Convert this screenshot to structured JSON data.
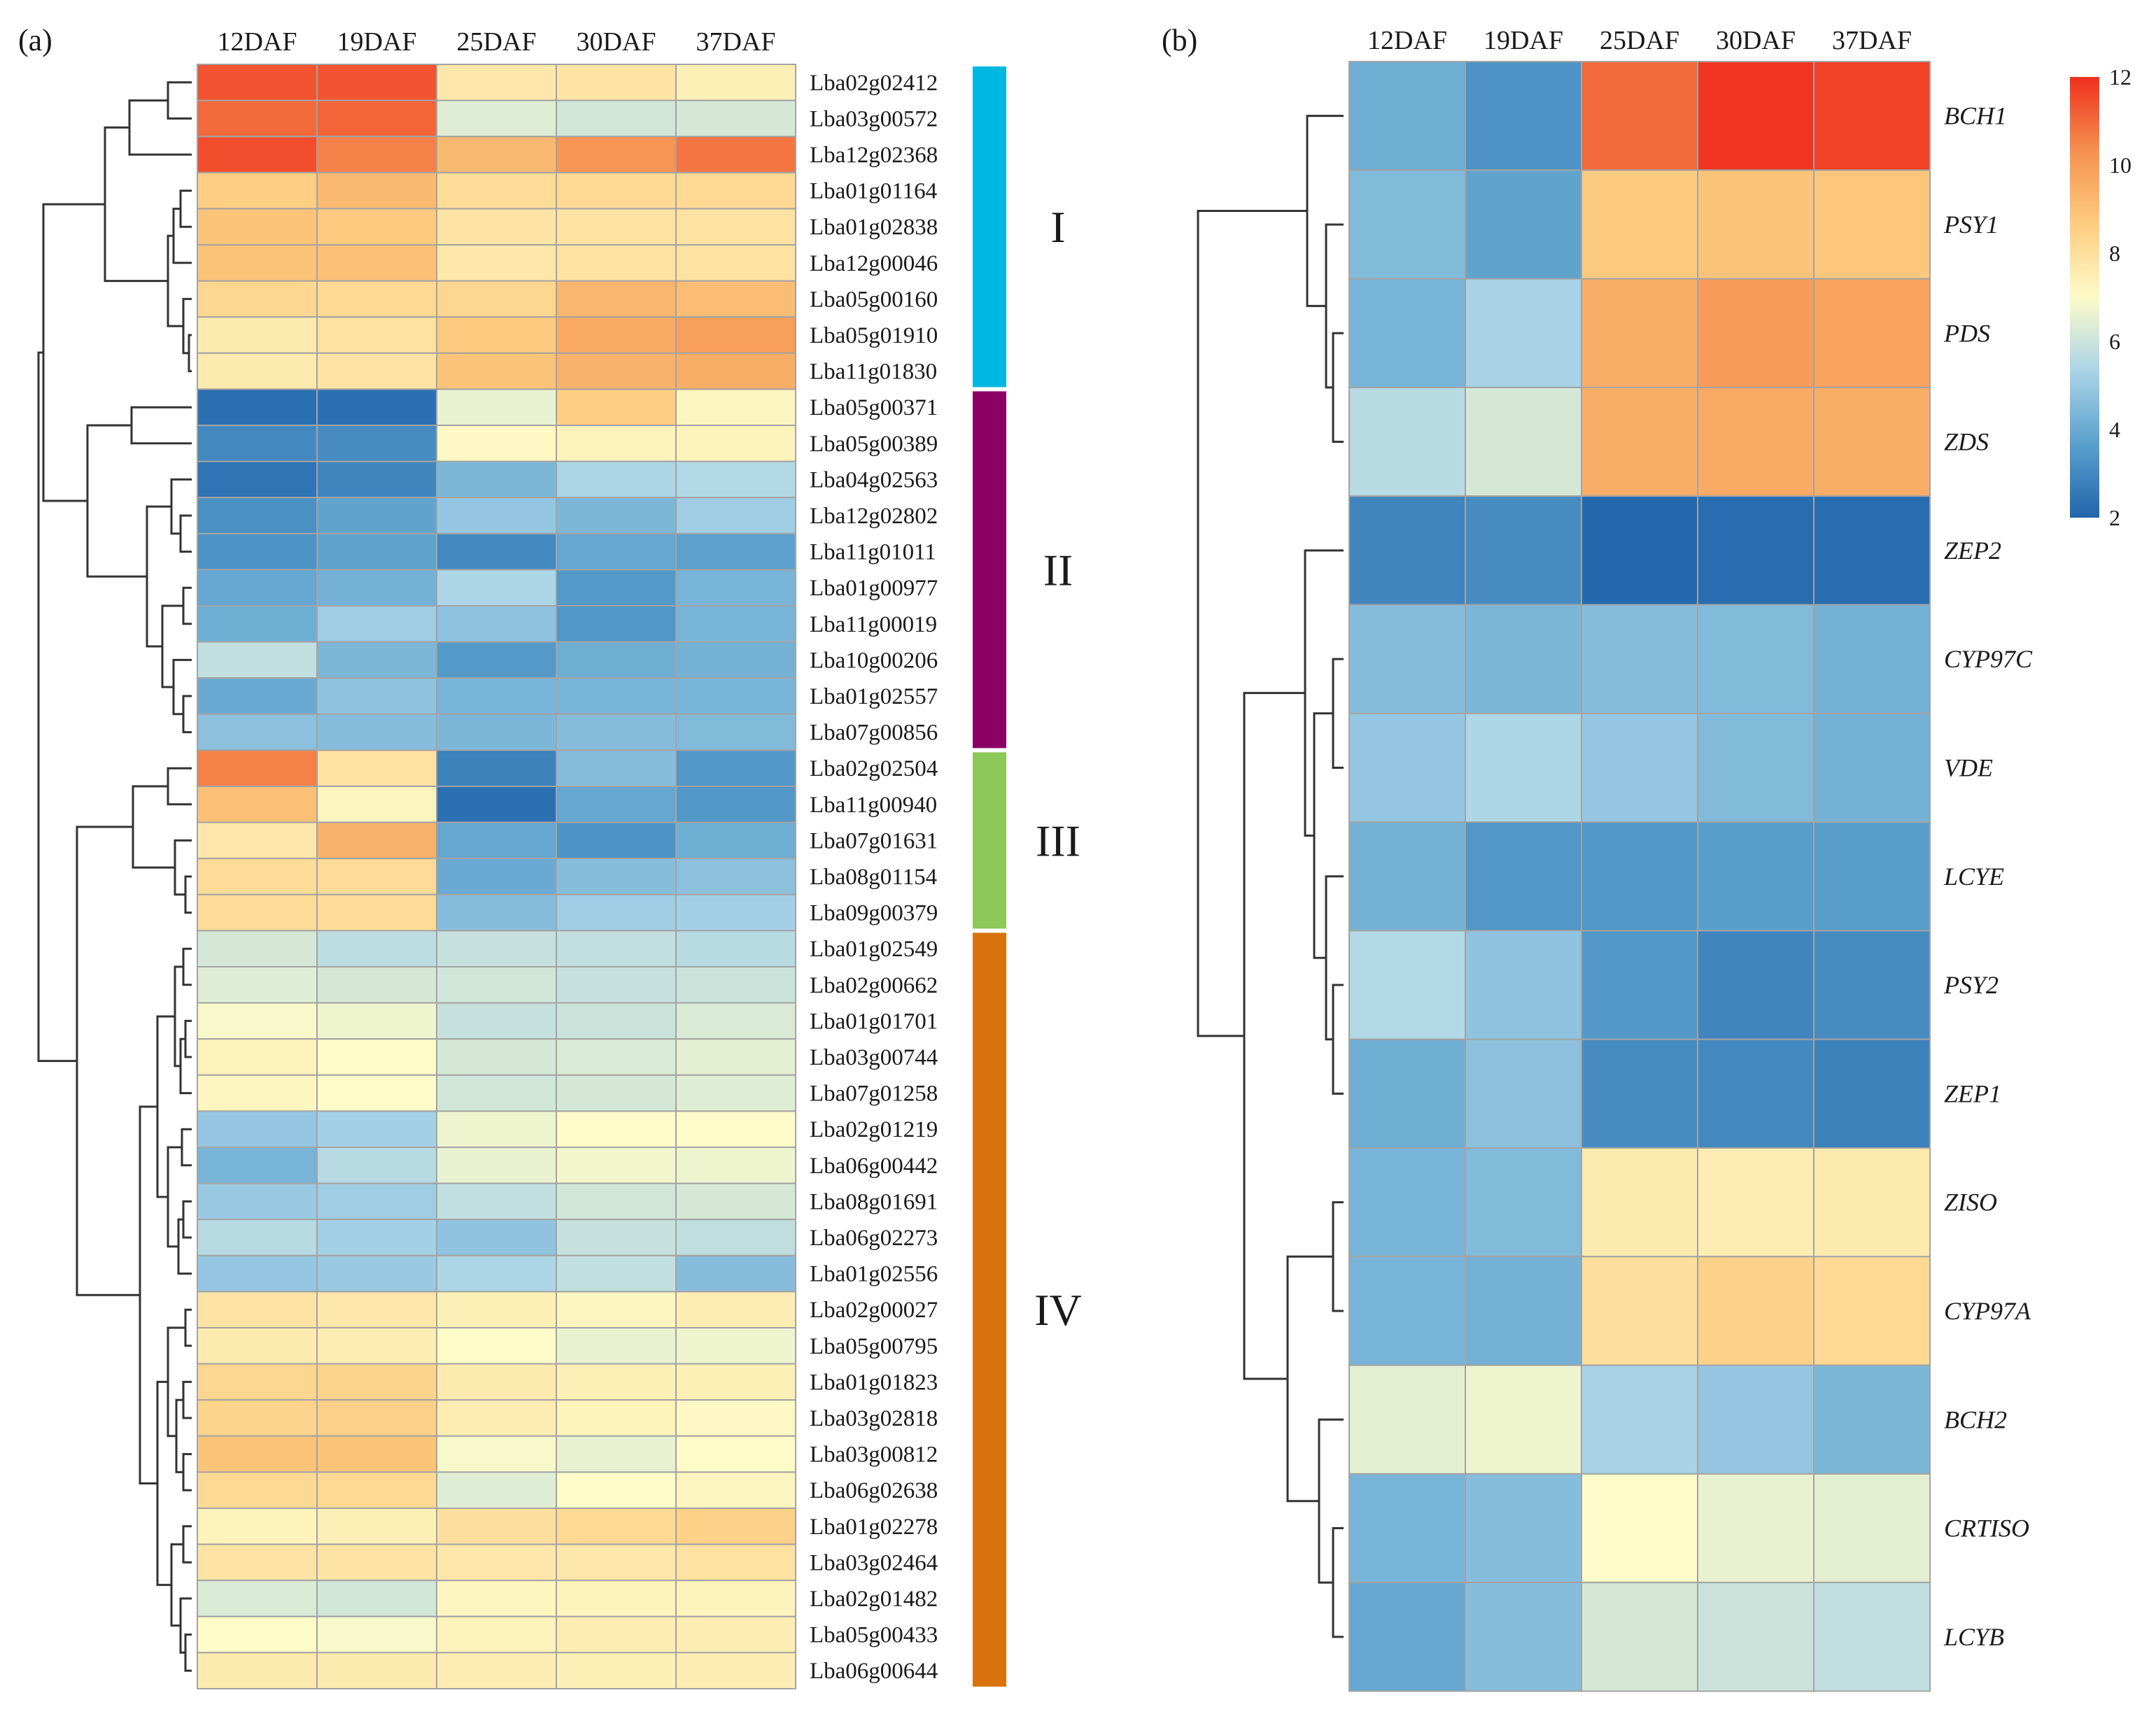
{
  "chart_data": [
    {
      "type": "heatmap",
      "panel": "(a)",
      "columns": [
        "12DAF",
        "19DAF",
        "25DAF",
        "30DAF",
        "37DAF"
      ],
      "rows": [
        {
          "label": "Lba02g02412",
          "values": [
            11.4,
            11.4,
            7.7,
            7.8,
            7.4
          ]
        },
        {
          "label": "Lba03g00572",
          "values": [
            11.0,
            11.1,
            6.4,
            6.1,
            6.2
          ]
        },
        {
          "label": "Lba12g02368",
          "values": [
            11.5,
            10.6,
            9.2,
            10.2,
            10.8
          ]
        },
        {
          "label": "Lba01g01164",
          "values": [
            8.6,
            9.2,
            8.1,
            8.2,
            8.2
          ]
        },
        {
          "label": "Lba01g02838",
          "values": [
            8.9,
            8.7,
            7.8,
            7.9,
            7.9
          ]
        },
        {
          "label": "Lba12g00046",
          "values": [
            8.9,
            9.0,
            7.7,
            7.9,
            7.9
          ]
        },
        {
          "label": "Lba05g00160",
          "values": [
            8.3,
            8.2,
            8.3,
            9.3,
            9.1
          ]
        },
        {
          "label": "Lba05g01910",
          "values": [
            7.6,
            7.9,
            8.7,
            9.6,
            9.9
          ]
        },
        {
          "label": "Lba11g01830",
          "values": [
            7.6,
            7.8,
            8.9,
            9.4,
            9.5
          ]
        },
        {
          "label": "Lba05g00371",
          "values": [
            2.3,
            2.3,
            6.6,
            8.6,
            7.2
          ]
        },
        {
          "label": "Lba05g00389",
          "values": [
            3.0,
            3.1,
            7.1,
            7.3,
            7.3
          ]
        },
        {
          "label": "Lba04g02563",
          "values": [
            2.4,
            2.9,
            4.4,
            5.4,
            5.5
          ]
        },
        {
          "label": "Lba12g02802",
          "values": [
            3.2,
            3.8,
            4.9,
            4.4,
            5.1
          ]
        },
        {
          "label": "Lba11g01011",
          "values": [
            3.3,
            3.8,
            3.0,
            3.9,
            3.7
          ]
        },
        {
          "label": "Lba01g00977",
          "values": [
            3.9,
            4.2,
            5.4,
            3.5,
            4.3
          ]
        },
        {
          "label": "Lba11g00019",
          "values": [
            4.1,
            5.1,
            4.8,
            3.4,
            4.3
          ]
        },
        {
          "label": "Lba10g00206",
          "values": [
            5.8,
            4.4,
            3.5,
            4.1,
            4.2
          ]
        },
        {
          "label": "Lba01g02557",
          "values": [
            4.0,
            4.8,
            4.3,
            4.3,
            4.3
          ]
        },
        {
          "label": "Lba07g00856",
          "values": [
            4.7,
            4.6,
            4.4,
            4.6,
            4.5
          ]
        },
        {
          "label": "Lba02g02504",
          "values": [
            10.6,
            7.9,
            2.8,
            4.6,
            3.4
          ]
        },
        {
          "label": "Lba11g00940",
          "values": [
            9.0,
            7.2,
            2.3,
            3.9,
            3.4
          ]
        },
        {
          "label": "Lba07g01631",
          "values": [
            7.7,
            9.4,
            3.9,
            3.3,
            4.1
          ]
        },
        {
          "label": "Lba08g01154",
          "values": [
            8.1,
            8.1,
            4.0,
            4.6,
            4.7
          ]
        },
        {
          "label": "Lba09g00379",
          "values": [
            8.1,
            8.1,
            4.6,
            5.1,
            5.2
          ]
        },
        {
          "label": "Lba01g02549",
          "values": [
            6.2,
            5.7,
            5.9,
            5.8,
            5.6
          ]
        },
        {
          "label": "Lba02g00662",
          "values": [
            6.4,
            6.2,
            6.1,
            5.9,
            6.0
          ]
        },
        {
          "label": "Lba01g01701",
          "values": [
            6.9,
            6.7,
            5.9,
            6.0,
            6.3
          ]
        },
        {
          "label": "Lba03g00744",
          "values": [
            7.3,
            7.0,
            6.2,
            6.3,
            6.5
          ]
        },
        {
          "label": "Lba07g01258",
          "values": [
            7.2,
            7.0,
            6.1,
            6.2,
            6.4
          ]
        },
        {
          "label": "Lba02g01219",
          "values": [
            4.9,
            5.2,
            6.7,
            7.0,
            7.0
          ]
        },
        {
          "label": "Lba06g00442",
          "values": [
            4.3,
            5.6,
            6.6,
            6.8,
            6.7
          ]
        },
        {
          "label": "Lba08g01691",
          "values": [
            5.0,
            5.1,
            5.8,
            6.1,
            6.2
          ]
        },
        {
          "label": "Lba06g02273",
          "values": [
            5.6,
            5.2,
            4.8,
            5.9,
            5.8
          ]
        },
        {
          "label": "Lba01g02556",
          "values": [
            4.9,
            5.0,
            5.4,
            5.8,
            4.6
          ]
        },
        {
          "label": "Lba02g00027",
          "values": [
            7.8,
            7.7,
            7.4,
            7.2,
            7.5
          ]
        },
        {
          "label": "Lba05g00795",
          "values": [
            7.6,
            7.5,
            7.0,
            6.6,
            6.7
          ]
        },
        {
          "label": "Lba01g01823",
          "values": [
            8.3,
            8.4,
            7.6,
            7.4,
            7.4
          ]
        },
        {
          "label": "Lba03g02818",
          "values": [
            8.4,
            8.5,
            7.5,
            7.3,
            7.1
          ]
        },
        {
          "label": "Lba03g00812",
          "values": [
            8.9,
            8.9,
            6.9,
            6.6,
            7.0
          ]
        },
        {
          "label": "Lba06g02638",
          "values": [
            8.2,
            8.2,
            6.4,
            7.0,
            7.2
          ]
        },
        {
          "label": "Lba01g02278",
          "values": [
            7.3,
            7.4,
            8.0,
            8.2,
            8.5
          ]
        },
        {
          "label": "Lba03g02464",
          "values": [
            7.8,
            7.8,
            7.7,
            7.7,
            7.9
          ]
        },
        {
          "label": "Lba02g01482",
          "values": [
            6.3,
            6.1,
            7.2,
            7.3,
            7.3
          ]
        },
        {
          "label": "Lba05g00433",
          "values": [
            7.0,
            6.9,
            7.3,
            7.5,
            7.5
          ]
        },
        {
          "label": "Lba06g00644",
          "values": [
            7.6,
            7.6,
            7.5,
            7.4,
            7.5
          ]
        }
      ],
      "clusters": [
        {
          "label": "I",
          "start": 0,
          "end": 8,
          "color": "#00b7e2"
        },
        {
          "label": "II",
          "start": 9,
          "end": 18,
          "color": "#8a0065"
        },
        {
          "label": "III",
          "start": 19,
          "end": 23,
          "color": "#8cc95a"
        },
        {
          "label": "IV",
          "start": 24,
          "end": 44,
          "color": "#d9730e"
        }
      ]
    },
    {
      "type": "heatmap",
      "panel": "(b)",
      "columns": [
        "12DAF",
        "19DAF",
        "25DAF",
        "30DAF",
        "37DAF"
      ],
      "rows": [
        {
          "label": "BCH1",
          "values": [
            4.1,
            3.3,
            11.0,
            11.9,
            11.7
          ]
        },
        {
          "label": "PSY1",
          "values": [
            4.5,
            3.8,
            8.7,
            8.9,
            8.8
          ]
        },
        {
          "label": "PDS",
          "values": [
            4.3,
            5.3,
            9.5,
            10.0,
            9.8
          ]
        },
        {
          "label": "ZDS",
          "values": [
            5.6,
            6.2,
            9.5,
            9.6,
            9.5
          ]
        },
        {
          "label": "ZEP2",
          "values": [
            2.9,
            3.1,
            2.1,
            2.2,
            2.2
          ]
        },
        {
          "label": "CYP97C",
          "values": [
            4.6,
            4.4,
            4.6,
            4.5,
            4.2
          ]
        },
        {
          "label": "VDE",
          "values": [
            4.9,
            5.4,
            4.9,
            4.5,
            4.2
          ]
        },
        {
          "label": "LCYE",
          "values": [
            4.2,
            3.4,
            3.4,
            3.6,
            3.6
          ]
        },
        {
          "label": "PSY2",
          "values": [
            5.5,
            4.8,
            3.4,
            2.9,
            3.1
          ]
        },
        {
          "label": "ZEP1",
          "values": [
            4.1,
            4.7,
            3.1,
            3.0,
            2.8
          ]
        },
        {
          "label": "ZISO",
          "values": [
            4.3,
            4.5,
            7.6,
            7.5,
            7.6
          ]
        },
        {
          "label": "CYP97A",
          "values": [
            4.3,
            4.2,
            8.0,
            8.5,
            8.2
          ]
        },
        {
          "label": "BCH2",
          "values": [
            6.5,
            6.7,
            5.3,
            4.9,
            4.4
          ]
        },
        {
          "label": "CRTISO",
          "values": [
            4.3,
            4.6,
            7.0,
            6.6,
            6.5
          ]
        },
        {
          "label": "LCYB",
          "values": [
            3.9,
            4.6,
            6.2,
            6.0,
            5.8
          ]
        }
      ],
      "colorbar": {
        "ticks": [
          12,
          10,
          8,
          6,
          4,
          2
        ],
        "min": 2,
        "max": 12,
        "colors": [
          "#2166ac",
          "#5aa0cc",
          "#aad4e8",
          "#fdfbc8",
          "#fdcc80",
          "#f59050",
          "#f0301e"
        ]
      }
    }
  ]
}
